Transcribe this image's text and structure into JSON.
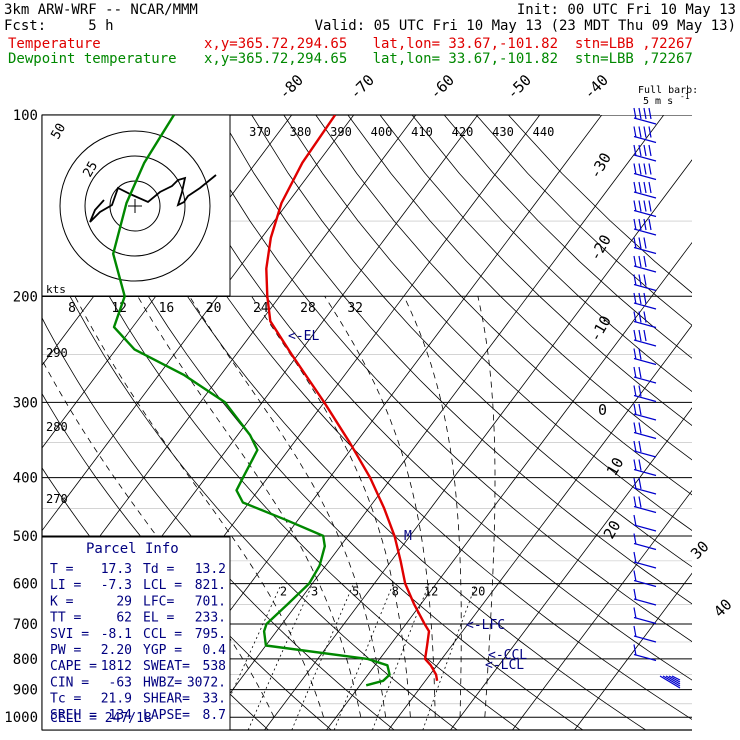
{
  "header": {
    "line1_left": "3km ARW-WRF -- NCAR/MMM",
    "line1_right": "Init: 00 UTC Fri 10 May 13",
    "line2_left": "Fcst:     5 h",
    "line2_right": "Valid: 05 UTC Fri 10 May 13 (23 MDT Thu 09 May 13)",
    "temp_label": "Temperature",
    "dew_label": "Dewpoint temperature",
    "temp_info": "x,y=365.72,294.65   lat,lon= 33.67,-101.82  stn=LBB ,72267",
    "dew_info": "x,y=365.72,294.65   lat,lon= 33.67,-101.82  stn=LBB ,72267"
  },
  "colors": {
    "temperature": "#e00000",
    "dewpoint": "#008800",
    "grid": "#000000",
    "parcel": "#000080",
    "barbs": "#0000cc"
  },
  "chart_data": {
    "type": "line",
    "plot": "skew-T log-p",
    "pressure_ticks": [
      "100",
      "200",
      "300",
      "400",
      "500",
      "600",
      "700",
      "800",
      "900",
      "1000"
    ],
    "isotherm_labels": [
      "-80",
      "-70",
      "-60",
      "-50",
      "-40",
      "-30",
      "-20",
      "-10",
      "0",
      "10",
      "20",
      "30",
      "40"
    ],
    "theta_labels": [
      "370",
      "380",
      "390",
      "400",
      "410",
      "420",
      "430",
      "440"
    ],
    "theta_labels_lower": [
      "290",
      "280",
      "270"
    ],
    "hodo_speed_labels": [
      "8",
      "12",
      "16",
      "20",
      "24",
      "28",
      "32"
    ],
    "hodo_speed_unit": "kts",
    "hodo_ring_labels": [
      "25",
      "50"
    ],
    "mixing_ratio_labels": [
      "2",
      "3",
      "5",
      "8",
      "12",
      "20"
    ],
    "series": [
      {
        "name": "Temperature",
        "color": "#e00000",
        "points": [
          [
            870,
            21.9
          ],
          [
            850,
            21.0
          ],
          [
            820,
            19.0
          ],
          [
            800,
            17.3
          ],
          [
            760,
            16.0
          ],
          [
            720,
            14.6
          ],
          [
            700,
            13.0
          ],
          [
            650,
            9.0
          ],
          [
            600,
            5.0
          ],
          [
            550,
            1.5
          ],
          [
            500,
            -2.5
          ],
          [
            450,
            -7.5
          ],
          [
            400,
            -13.5
          ],
          [
            350,
            -21.0
          ],
          [
            300,
            -30.0
          ],
          [
            250,
            -41.0
          ],
          [
            220,
            -48.5
          ],
          [
            200,
            -52.0
          ],
          [
            180,
            -55.5
          ],
          [
            160,
            -58.5
          ],
          [
            140,
            -61.0
          ],
          [
            120,
            -62.5
          ],
          [
            100,
            -63.0
          ]
        ]
      },
      {
        "name": "Dewpoint",
        "color": "#008800",
        "points": [
          [
            885,
            11.0
          ],
          [
            870,
            13.2
          ],
          [
            850,
            13.5
          ],
          [
            820,
            12.0
          ],
          [
            800,
            8.0
          ],
          [
            760,
            -10.0
          ],
          [
            720,
            -12.0
          ],
          [
            700,
            -12.5
          ],
          [
            650,
            -11.5
          ],
          [
            600,
            -10.5
          ],
          [
            560,
            -11.0
          ],
          [
            520,
            -12.5
          ],
          [
            500,
            -14.0
          ],
          [
            470,
            -22.0
          ],
          [
            440,
            -31.0
          ],
          [
            420,
            -33.5
          ],
          [
            400,
            -34.0
          ],
          [
            360,
            -35.0
          ],
          [
            340,
            -38.0
          ],
          [
            300,
            -46.0
          ],
          [
            270,
            -56.0
          ],
          [
            245,
            -67.0
          ],
          [
            225,
            -73.0
          ],
          [
            200,
            -75.0
          ],
          [
            170,
            -82.0
          ],
          [
            140,
            -86.0
          ],
          [
            120,
            -88.0
          ],
          [
            100,
            -89.0
          ]
        ]
      }
    ],
    "wind_barbs_speed_kt": [
      95,
      90,
      85,
      80,
      75,
      70,
      70,
      65,
      60,
      55,
      55,
      50,
      50,
      45,
      45,
      40,
      40,
      40,
      35,
      35,
      30,
      30,
      25,
      25,
      20,
      20,
      15,
      15,
      10,
      10
    ],
    "level_markers": [
      "EL",
      "LFC",
      "CCL",
      "LCL",
      "M"
    ],
    "barb_legend_line1": "Full barb:",
    "barb_legend_line2": "5 m s",
    "barb_legend_exponent": "-1"
  },
  "parcel_info": {
    "title": "Parcel Info",
    "rows": [
      [
        "T =",
        "17.3",
        "Td =",
        "13.2"
      ],
      [
        "LI =",
        "-7.3",
        "LCL =",
        "821."
      ],
      [
        "K =",
        "29",
        "LFC=",
        "701."
      ],
      [
        "TT =",
        "62",
        "EL =",
        "233."
      ],
      [
        "SVI =",
        "-8.1",
        "CCL =",
        "795."
      ],
      [
        "PW =",
        "2.20",
        "YGP =",
        "0.4"
      ],
      [
        "CAPE =",
        "1812",
        "SWEAT=",
        "538"
      ],
      [
        "CIN =",
        "-63",
        "HWBZ=",
        "3072."
      ],
      [
        "Tc =",
        "21.9",
        "SHEAR=",
        "33."
      ],
      [
        "SREH =",
        "134",
        "LAPSE=",
        "8.7"
      ]
    ],
    "cell": "CELL = 247/18"
  }
}
